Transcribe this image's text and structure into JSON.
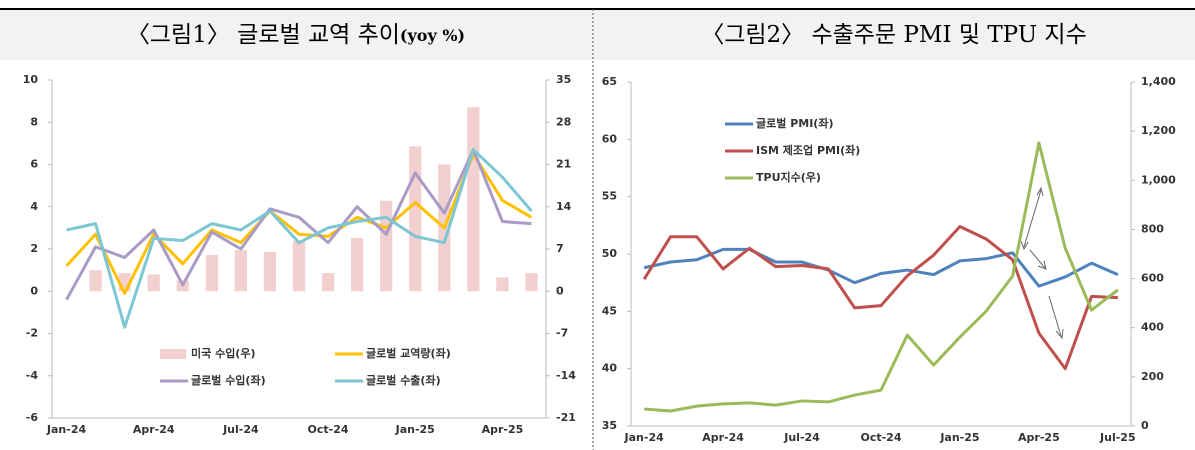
{
  "chart_data": [
    {
      "type": "combo",
      "title": "〈그림1〉 글로벌 교역 추이",
      "title_unit": "(yoy %)",
      "categories": [
        "Jan-24",
        null,
        null,
        "Apr-24",
        null,
        null,
        "Jul-24",
        null,
        null,
        "Oct-24",
        null,
        null,
        "Jan-25",
        null,
        null,
        "Apr-25",
        null
      ],
      "series": [
        {
          "name": "미국 수입(우)",
          "type": "bar",
          "axis": "y2",
          "color": "#f2d0d0",
          "values": [
            null,
            3.5,
            3,
            2.8,
            1.8,
            6,
            6.8,
            6.5,
            8.4,
            3,
            8.8,
            15,
            24,
            21,
            30.5,
            2.3,
            3
          ]
        },
        {
          "name": "글로벌 교역량(좌)",
          "type": "line",
          "color": "#ffc000",
          "values": [
            1.2,
            2.7,
            -0.1,
            2.7,
            1.3,
            2.9,
            2.3,
            3.8,
            2.7,
            2.6,
            3.5,
            3.0,
            4.2,
            3.0,
            6.5,
            4.3,
            3.5
          ]
        },
        {
          "name": "글로벌 수입(좌)",
          "type": "line",
          "color": "#a99bc6",
          "values": [
            -0.4,
            2.1,
            1.6,
            2.9,
            0.3,
            2.8,
            2.0,
            3.9,
            3.5,
            2.3,
            4.0,
            2.7,
            5.6,
            3.7,
            6.7,
            3.3,
            3.2
          ]
        },
        {
          "name": "글로벌 수출(좌)",
          "type": "line",
          "color": "#7cc7d3",
          "values": [
            2.9,
            3.2,
            -1.7,
            2.5,
            2.4,
            3.2,
            2.9,
            3.8,
            2.3,
            3.0,
            3.3,
            3.5,
            2.6,
            2.3,
            6.7,
            5.4,
            3.8
          ]
        }
      ],
      "ylim": [
        -6,
        10
      ],
      "yticks": [
        -6,
        -4,
        -2,
        0,
        2,
        4,
        6,
        8,
        10
      ],
      "y2lim": [
        -21,
        35
      ],
      "y2ticks": [
        -21,
        -14,
        -7,
        0,
        7,
        14,
        21,
        28,
        35
      ],
      "grid": false,
      "legend": "bottom-left"
    },
    {
      "type": "line",
      "title": "〈그림2〉 수출주문 PMI 및 TPU 지수",
      "categories": [
        "Jan-24",
        null,
        null,
        "Apr-24",
        null,
        null,
        "Jul-24",
        null,
        null,
        "Oct-24",
        null,
        null,
        "Jan-25",
        null,
        null,
        "Apr-25",
        null,
        null,
        "Jul-25"
      ],
      "series": [
        {
          "name": "글로벌 PMI(좌)",
          "type": "line",
          "color": "#4f81bd",
          "values": [
            48.8,
            49.3,
            49.5,
            50.4,
            50.4,
            49.3,
            49.3,
            48.6,
            47.5,
            48.3,
            48.6,
            48.2,
            49.4,
            49.6,
            50.1,
            47.2,
            48.0,
            49.2,
            48.2
          ]
        },
        {
          "name": "ISM 제조업 PMI(좌)",
          "type": "line",
          "color": "#c0504d",
          "values": [
            47.8,
            51.5,
            51.5,
            48.7,
            50.5,
            48.9,
            49.0,
            48.7,
            45.3,
            45.5,
            48.1,
            49.9,
            52.4,
            51.3,
            49.5,
            43.1,
            40.0,
            46.3,
            46.2
          ]
        },
        {
          "name": "TPU지수(우)",
          "type": "line",
          "axis": "y2",
          "color": "#9bbb59",
          "values": [
            69,
            61,
            81,
            90,
            94,
            85,
            102,
            98,
            126,
            146,
            370,
            248,
            362,
            468,
            610,
            1152,
            724,
            472,
            554
          ]
        }
      ],
      "ylim": [
        35,
        65
      ],
      "yticks": [
        35,
        40,
        45,
        50,
        55,
        60,
        65
      ],
      "y2lim": [
        0,
        1400
      ],
      "y2ticks": [
        0,
        200,
        400,
        600,
        800,
        {
          "value": 1000,
          "label": "1,000"
        },
        {
          "value": 1200,
          "label": "1,200"
        },
        {
          "value": 1400,
          "label": "1,400"
        }
      ],
      "grid": false,
      "legend": "top-left"
    }
  ]
}
